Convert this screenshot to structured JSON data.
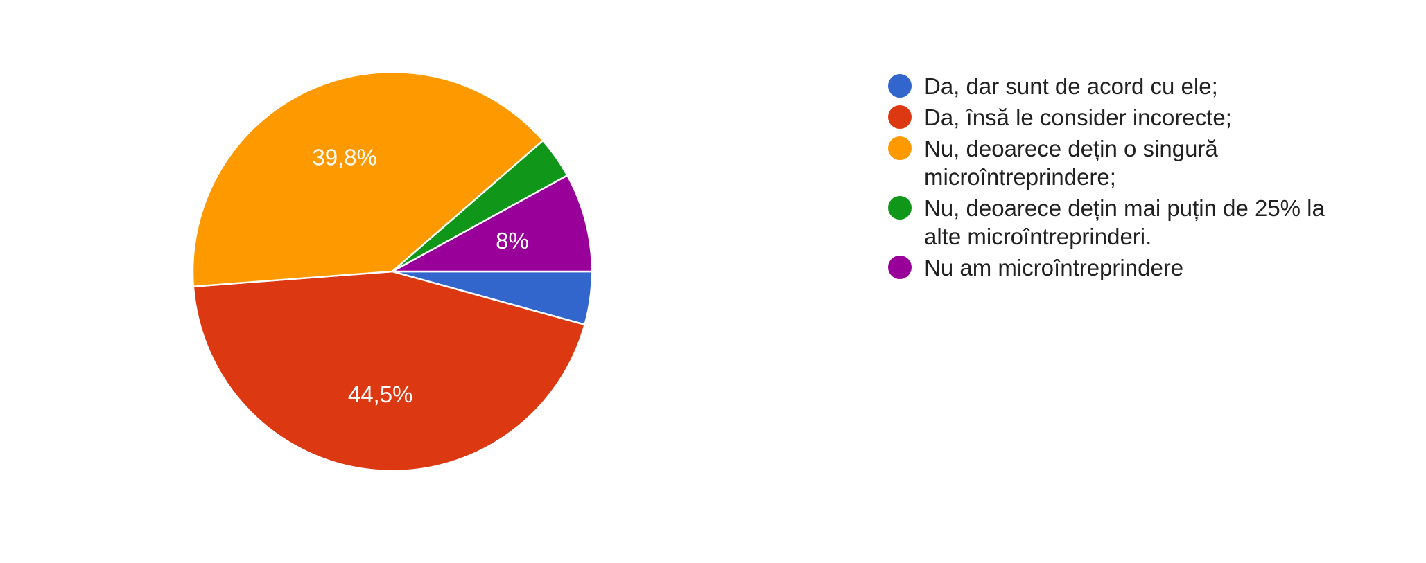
{
  "chart_data": {
    "type": "pie",
    "title": "",
    "legend_position": "right",
    "start_angle_deg": 0,
    "direction": "clockwise",
    "label_color": "#ffffff",
    "legend_text_color": "#212121",
    "slices": [
      {
        "label": "Da, dar sunt de acord cu ele;",
        "value": 4.3,
        "color": "#3366cc",
        "value_label": ""
      },
      {
        "label": "Da, însă le consider incorecte;",
        "value": 44.5,
        "color": "#dc3912",
        "value_label": "44,5%"
      },
      {
        "label": "Nu, deoarece dețin o singură microîntreprindere;",
        "value": 39.8,
        "color": "#ff9900",
        "value_label": "39,8%"
      },
      {
        "label": "Nu, deoarece dețin mai puțin de 25% la alte microîntreprinderi.",
        "value": 3.4,
        "color": "#109618",
        "value_label": ""
      },
      {
        "label": "Nu am microîntreprindere",
        "value": 8,
        "color": "#990099",
        "value_label": "8%"
      }
    ]
  }
}
